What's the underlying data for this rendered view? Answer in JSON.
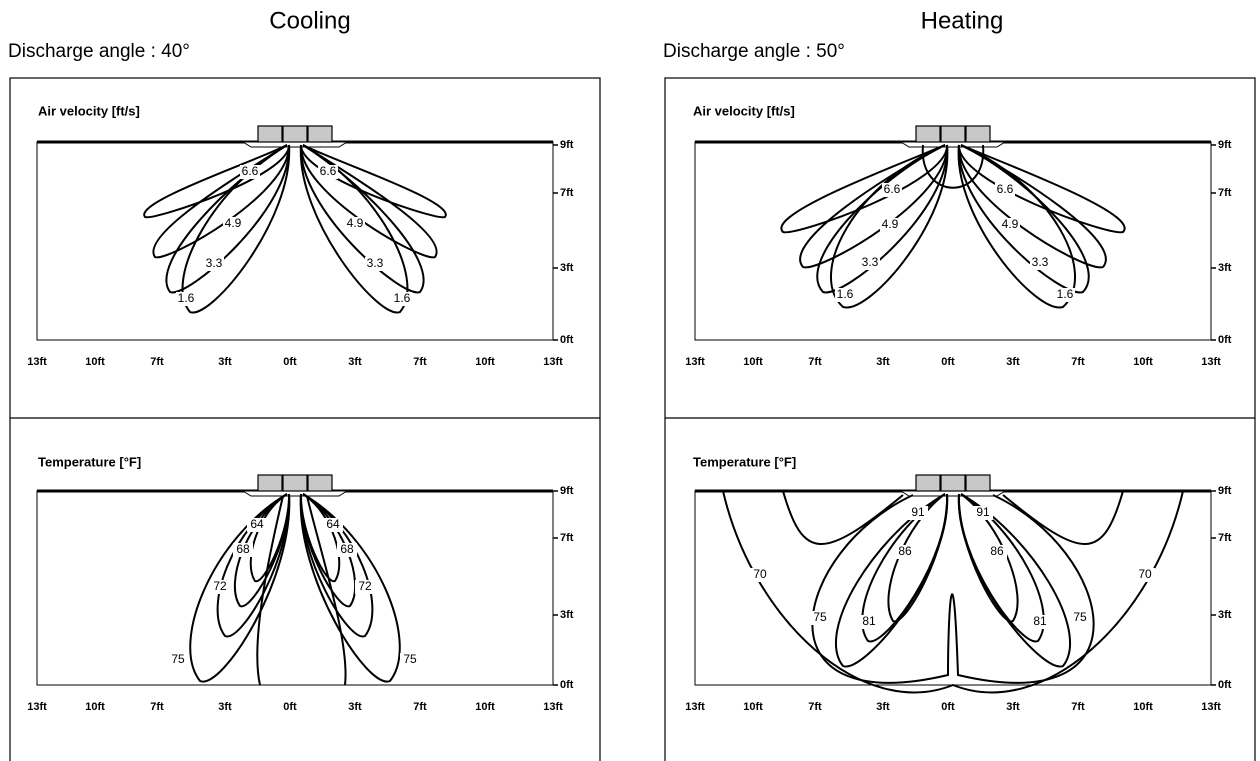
{
  "panels": [
    {
      "title": "Cooling",
      "subtitle": "Discharge angle : 40°",
      "plots": [
        {
          "label": "Air velocity [ft/s]",
          "x_ticks": [
            "13ft",
            "10ft",
            "7ft",
            "3ft",
            "0ft",
            "3ft",
            "7ft",
            "10ft",
            "13ft"
          ],
          "y_ticks": [
            "9ft",
            "7ft",
            "3ft",
            "0ft"
          ],
          "contour_labels": [
            "6.6",
            "4.9",
            "3.3",
            "1.6",
            "6.6",
            "4.9",
            "3.3",
            "1.6"
          ]
        },
        {
          "label": "Temperature [°F]",
          "x_ticks": [
            "13ft",
            "10ft",
            "7ft",
            "3ft",
            "0ft",
            "3ft",
            "7ft",
            "10ft",
            "13ft"
          ],
          "y_ticks": [
            "9ft",
            "7ft",
            "3ft",
            "0ft"
          ],
          "contour_labels": [
            "64",
            "68",
            "72",
            "75",
            "64",
            "68",
            "72",
            "75"
          ]
        }
      ]
    },
    {
      "title": "Heating",
      "subtitle": "Discharge angle : 50°",
      "plots": [
        {
          "label": "Air velocity [ft/s]",
          "x_ticks": [
            "13ft",
            "10ft",
            "7ft",
            "3ft",
            "0ft",
            "3ft",
            "7ft",
            "10ft",
            "13ft"
          ],
          "y_ticks": [
            "9ft",
            "7ft",
            "3ft",
            "0ft"
          ],
          "contour_labels": [
            "6.6",
            "4.9",
            "3.3",
            "1.6",
            "6.6",
            "4.9",
            "3.3",
            "1.6"
          ]
        },
        {
          "label": "Temperature [°F]",
          "x_ticks": [
            "13ft",
            "10ft",
            "7ft",
            "3ft",
            "0ft",
            "3ft",
            "7ft",
            "10ft",
            "13ft"
          ],
          "y_ticks": [
            "9ft",
            "7ft",
            "3ft",
            "0ft"
          ],
          "contour_labels": [
            "91",
            "86",
            "81",
            "75",
            "70",
            "91",
            "86",
            "81",
            "75",
            "70"
          ]
        }
      ]
    }
  ]
}
